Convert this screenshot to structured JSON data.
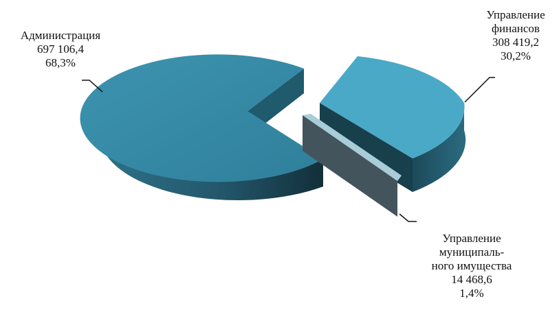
{
  "chart_data": {
    "type": "pie",
    "title": "",
    "slices": [
      {
        "name_lines": [
          "Администрация"
        ],
        "value": "697 106,4",
        "percent": "68,3%",
        "share": 0.683,
        "color": "#3a8fab"
      },
      {
        "name_lines": [
          "Управление",
          "финансов"
        ],
        "value": "308 419,2",
        "percent": "30,2%",
        "share": 0.302,
        "color": "#4aa9c6"
      },
      {
        "name_lines": [
          "Управление",
          "муниципаль-",
          "ного имущества"
        ],
        "value": "14 468,6",
        "percent": "1,4%",
        "share": 0.014,
        "color": "#a9cdd8"
      }
    ]
  }
}
